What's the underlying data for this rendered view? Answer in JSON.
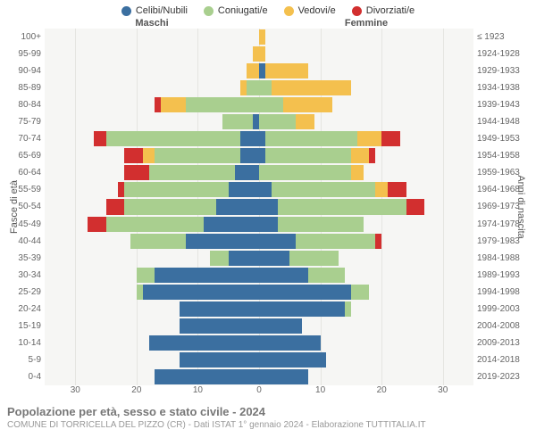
{
  "legend": [
    {
      "label": "Celibi/Nubili",
      "color": "#3b6fa0"
    },
    {
      "label": "Coniugati/e",
      "color": "#a9cf8f"
    },
    {
      "label": "Vedovi/e",
      "color": "#f4c04e"
    },
    {
      "label": "Divorziati/e",
      "color": "#d22f2f"
    }
  ],
  "headers": {
    "left": "Maschi",
    "right": "Femmine"
  },
  "axis_titles": {
    "left": "Fasce di età",
    "right": "Anni di nascita"
  },
  "x_axis": {
    "max": 35,
    "ticks": [
      30,
      20,
      10,
      0,
      10,
      20,
      30
    ],
    "positions_pct": [
      7.14,
      21.43,
      35.71,
      50,
      64.29,
      78.57,
      92.86
    ]
  },
  "grid_positions_pct": [
    7.14,
    21.43,
    35.71,
    50,
    64.29,
    78.57,
    92.86
  ],
  "background_color": "#f6f6f4",
  "age_bands": [
    {
      "age": "100+",
      "birth": "≤ 1923",
      "m": {
        "c": 0,
        "g": 0,
        "v": 0,
        "d": 0
      },
      "f": {
        "c": 0,
        "g": 0,
        "v": 1,
        "d": 0
      }
    },
    {
      "age": "95-99",
      "birth": "1924-1928",
      "m": {
        "c": 0,
        "g": 0,
        "v": 1,
        "d": 0
      },
      "f": {
        "c": 0,
        "g": 0,
        "v": 1,
        "d": 0
      }
    },
    {
      "age": "90-94",
      "birth": "1929-1933",
      "m": {
        "c": 0,
        "g": 0,
        "v": 2,
        "d": 0
      },
      "f": {
        "c": 1,
        "g": 0,
        "v": 7,
        "d": 0
      }
    },
    {
      "age": "85-89",
      "birth": "1934-1938",
      "m": {
        "c": 0,
        "g": 2,
        "v": 1,
        "d": 0
      },
      "f": {
        "c": 0,
        "g": 2,
        "v": 13,
        "d": 0
      }
    },
    {
      "age": "80-84",
      "birth": "1939-1943",
      "m": {
        "c": 0,
        "g": 12,
        "v": 4,
        "d": 1
      },
      "f": {
        "c": 0,
        "g": 4,
        "v": 8,
        "d": 0
      }
    },
    {
      "age": "75-79",
      "birth": "1944-1948",
      "m": {
        "c": 1,
        "g": 5,
        "v": 0,
        "d": 0
      },
      "f": {
        "c": 0,
        "g": 6,
        "v": 3,
        "d": 0
      }
    },
    {
      "age": "70-74",
      "birth": "1949-1953",
      "m": {
        "c": 3,
        "g": 22,
        "v": 0,
        "d": 2
      },
      "f": {
        "c": 1,
        "g": 15,
        "v": 4,
        "d": 3
      }
    },
    {
      "age": "65-69",
      "birth": "1954-1958",
      "m": {
        "c": 3,
        "g": 14,
        "v": 2,
        "d": 3
      },
      "f": {
        "c": 1,
        "g": 14,
        "v": 3,
        "d": 1
      }
    },
    {
      "age": "60-64",
      "birth": "1959-1963",
      "m": {
        "c": 4,
        "g": 14,
        "v": 0,
        "d": 4
      },
      "f": {
        "c": 0,
        "g": 15,
        "v": 2,
        "d": 0
      }
    },
    {
      "age": "55-59",
      "birth": "1964-1968",
      "m": {
        "c": 5,
        "g": 17,
        "v": 0,
        "d": 1
      },
      "f": {
        "c": 2,
        "g": 17,
        "v": 2,
        "d": 3
      }
    },
    {
      "age": "50-54",
      "birth": "1969-1973",
      "m": {
        "c": 7,
        "g": 15,
        "v": 0,
        "d": 3
      },
      "f": {
        "c": 3,
        "g": 21,
        "v": 0,
        "d": 3
      }
    },
    {
      "age": "45-49",
      "birth": "1974-1978",
      "m": {
        "c": 9,
        "g": 16,
        "v": 0,
        "d": 3
      },
      "f": {
        "c": 3,
        "g": 14,
        "v": 0,
        "d": 0
      }
    },
    {
      "age": "40-44",
      "birth": "1979-1983",
      "m": {
        "c": 12,
        "g": 9,
        "v": 0,
        "d": 0
      },
      "f": {
        "c": 6,
        "g": 13,
        "v": 0,
        "d": 1
      }
    },
    {
      "age": "35-39",
      "birth": "1984-1988",
      "m": {
        "c": 5,
        "g": 3,
        "v": 0,
        "d": 0
      },
      "f": {
        "c": 5,
        "g": 8,
        "v": 0,
        "d": 0
      }
    },
    {
      "age": "30-34",
      "birth": "1989-1993",
      "m": {
        "c": 17,
        "g": 3,
        "v": 0,
        "d": 0
      },
      "f": {
        "c": 8,
        "g": 6,
        "v": 0,
        "d": 0
      }
    },
    {
      "age": "25-29",
      "birth": "1994-1998",
      "m": {
        "c": 19,
        "g": 1,
        "v": 0,
        "d": 0
      },
      "f": {
        "c": 15,
        "g": 3,
        "v": 0,
        "d": 0
      }
    },
    {
      "age": "20-24",
      "birth": "1999-2003",
      "m": {
        "c": 13,
        "g": 0,
        "v": 0,
        "d": 0
      },
      "f": {
        "c": 14,
        "g": 1,
        "v": 0,
        "d": 0
      }
    },
    {
      "age": "15-19",
      "birth": "2004-2008",
      "m": {
        "c": 13,
        "g": 0,
        "v": 0,
        "d": 0
      },
      "f": {
        "c": 7,
        "g": 0,
        "v": 0,
        "d": 0
      }
    },
    {
      "age": "10-14",
      "birth": "2009-2013",
      "m": {
        "c": 18,
        "g": 0,
        "v": 0,
        "d": 0
      },
      "f": {
        "c": 10,
        "g": 0,
        "v": 0,
        "d": 0
      }
    },
    {
      "age": "5-9",
      "birth": "2014-2018",
      "m": {
        "c": 13,
        "g": 0,
        "v": 0,
        "d": 0
      },
      "f": {
        "c": 11,
        "g": 0,
        "v": 0,
        "d": 0
      }
    },
    {
      "age": "0-4",
      "birth": "2019-2023",
      "m": {
        "c": 17,
        "g": 0,
        "v": 0,
        "d": 0
      },
      "f": {
        "c": 8,
        "g": 0,
        "v": 0,
        "d": 0
      }
    }
  ],
  "footer": {
    "title": "Popolazione per età, sesso e stato civile - 2024",
    "subtitle": "COMUNE DI TORRICELLA DEL PIZZO (CR) - Dati ISTAT 1° gennaio 2024 - Elaborazione TUTTITALIA.IT"
  }
}
